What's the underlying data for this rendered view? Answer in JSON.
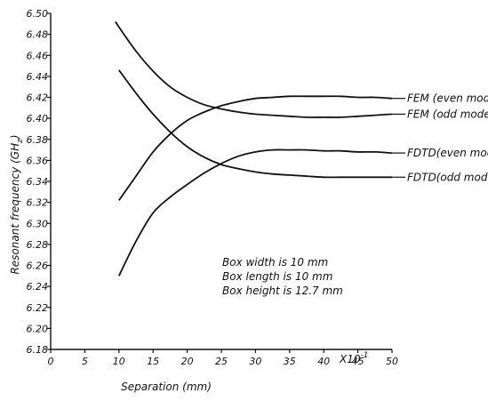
{
  "chart_data": {
    "type": "line",
    "title": "",
    "xlabel": "Separation (mm)",
    "ylabel": "Resonant frequency (GHz)",
    "x_multiplier": "X10",
    "x_multiplier_exp": "-1",
    "xlim": [
      0,
      50
    ],
    "ylim": [
      6.18,
      6.5
    ],
    "x_ticks": [
      0,
      5,
      10,
      15,
      20,
      25,
      30,
      35,
      40,
      45,
      50
    ],
    "y_ticks": [
      6.18,
      6.2,
      6.22,
      6.24,
      6.26,
      6.28,
      6.3,
      6.32,
      6.34,
      6.36,
      6.38,
      6.4,
      6.42,
      6.44,
      6.46,
      6.48,
      6.5
    ],
    "y_tick_labels": [
      "6.18",
      "6.20",
      "6.22",
      "6.24",
      "6.26",
      "6.28",
      "6.30",
      "6.32",
      "6.34",
      "6.36",
      "6.38",
      "6.40",
      "6.42",
      "6.44",
      "6.46",
      "6.48",
      "6.50"
    ],
    "grid": false,
    "series": [
      {
        "name": "FEM (even mode)",
        "x": [
          10,
          12.5,
          15,
          17.5,
          20,
          22.5,
          25,
          27.5,
          30,
          32.5,
          35,
          37.5,
          40,
          42.5,
          45,
          47.5,
          50
        ],
        "y": [
          6.322,
          6.345,
          6.368,
          6.385,
          6.398,
          6.406,
          6.412,
          6.416,
          6.419,
          6.42,
          6.421,
          6.421,
          6.421,
          6.421,
          6.42,
          6.42,
          6.419
        ]
      },
      {
        "name": "FEM (odd mode)",
        "x": [
          9.5,
          10,
          12.5,
          15,
          17.5,
          20,
          22.5,
          25,
          27.5,
          30,
          32.5,
          35,
          37.5,
          40,
          42.5,
          45,
          47.5,
          50
        ],
        "y": [
          6.492,
          6.487,
          6.464,
          6.445,
          6.43,
          6.42,
          6.413,
          6.409,
          6.406,
          6.404,
          6.403,
          6.402,
          6.401,
          6.401,
          6.401,
          6.402,
          6.403,
          6.404
        ]
      },
      {
        "name": "FDTD(even mode)",
        "x": [
          10,
          12.5,
          15,
          17.5,
          20,
          22.5,
          25,
          27.5,
          30,
          32.5,
          35,
          37.5,
          40,
          42.5,
          45,
          47.5,
          50
        ],
        "y": [
          6.25,
          6.283,
          6.31,
          6.325,
          6.337,
          6.348,
          6.357,
          6.364,
          6.368,
          6.37,
          6.37,
          6.37,
          6.369,
          6.369,
          6.368,
          6.368,
          6.367
        ]
      },
      {
        "name": "FDTD(odd mode)",
        "x": [
          10,
          12.5,
          15,
          17.5,
          20,
          22.5,
          25,
          27.5,
          30,
          32.5,
          35,
          37.5,
          40,
          42.5,
          45,
          47.5,
          50
        ],
        "y": [
          6.446,
          6.424,
          6.404,
          6.387,
          6.373,
          6.363,
          6.356,
          6.352,
          6.349,
          6.347,
          6.346,
          6.345,
          6.344,
          6.344,
          6.344,
          6.344,
          6.344
        ]
      }
    ],
    "annotations": [
      "Box width is 10 mm",
      "Box length is 10 mm",
      "Box height is 12.7 mm"
    ]
  }
}
